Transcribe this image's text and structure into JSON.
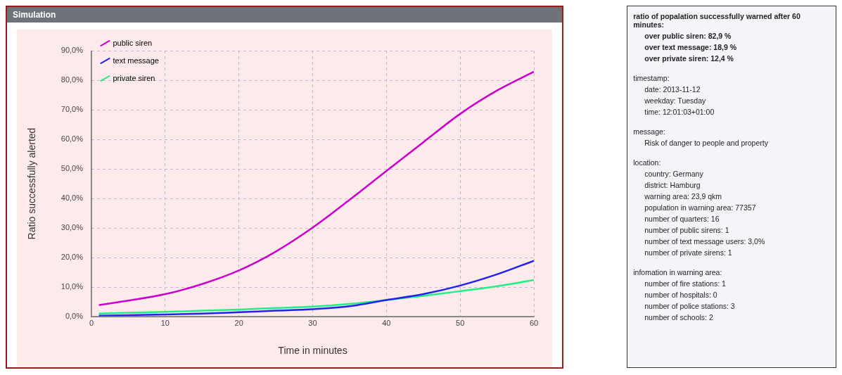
{
  "chart_data": [
    {
      "type": "line",
      "title": "Simulation",
      "xlabel": "Time in minutes",
      "ylabel": "Ratio successfully alerted",
      "xlim": [
        0,
        60
      ],
      "xticks": [
        0,
        10,
        20,
        30,
        40,
        50,
        60
      ],
      "ylim": [
        0,
        90
      ],
      "yticks": [
        {
          "value": 0,
          "label": "0,0%"
        },
        {
          "value": 10,
          "label": "10,0%"
        },
        {
          "value": 20,
          "label": "20,0%"
        },
        {
          "value": 30,
          "label": "30,0%"
        },
        {
          "value": 40,
          "label": "40,0%"
        },
        {
          "value": 50,
          "label": "50,0%"
        },
        {
          "value": 60,
          "label": "60,0%"
        },
        {
          "value": 70,
          "label": "70,0%"
        },
        {
          "value": 80,
          "label": "80,0%"
        },
        {
          "value": 90,
          "label": "90,0%"
        }
      ],
      "grid": true,
      "legend": "top left",
      "marker": "none",
      "line_style": "solid",
      "x": [
        1,
        5,
        10,
        15,
        20,
        25,
        30,
        35,
        40,
        45,
        50,
        55,
        60
      ],
      "series": [
        {
          "name": "public siren",
          "color": "#cc00cc",
          "values": [
            3.9,
            5.4,
            7.6,
            11,
            15.6,
            22,
            30.1,
            39.5,
            49.3,
            59,
            68.6,
            76.5,
            82.9
          ]
        },
        {
          "name": "text message",
          "color": "#2222ee",
          "values": [
            0.3,
            0.5,
            0.7,
            1.0,
            1.5,
            2.0,
            2.5,
            3.5,
            5.6,
            7.6,
            10.5,
            14.3,
            18.9
          ]
        },
        {
          "name": "private siren",
          "color": "#22ee88",
          "values": [
            1.0,
            1.3,
            1.6,
            2.0,
            2.4,
            2.9,
            3.4,
            4.3,
            5.6,
            7.0,
            8.6,
            10.3,
            12.4
          ]
        }
      ]
    },
    {
      "type": "other",
      "title": "ratio of popalation successfully warned after 60 minutes:",
      "annotations": [
        "over public siren: 82,9 %",
        "over text message: 18,9 %",
        "over private siren: 12,4 %"
      ]
    },
    {
      "type": "other",
      "title": "timestamp:",
      "annotations": [
        "date: 2013-11-12",
        "weekday: Tuesday",
        "time: 12:01:03+01:00"
      ]
    },
    {
      "type": "other",
      "title": "message:",
      "annotations": [
        "Risk of danger to people and property"
      ]
    },
    {
      "type": "other",
      "title": "location:",
      "annotations": [
        "country: Germany",
        "district: Hamburg",
        "warning area: 23,9 qkm",
        "population in warning area: 77357",
        "number of quarters: 16",
        "number of public sirens: 1",
        "number of text message users: 3,0%",
        "number of private sirens: 1"
      ]
    },
    {
      "type": "other",
      "title": "infomation in warning area:",
      "annotations": [
        "number of fire stations: 1",
        "number of hospitals:  0",
        "number of police stations: 3",
        "number of schools: 2"
      ]
    }
  ]
}
